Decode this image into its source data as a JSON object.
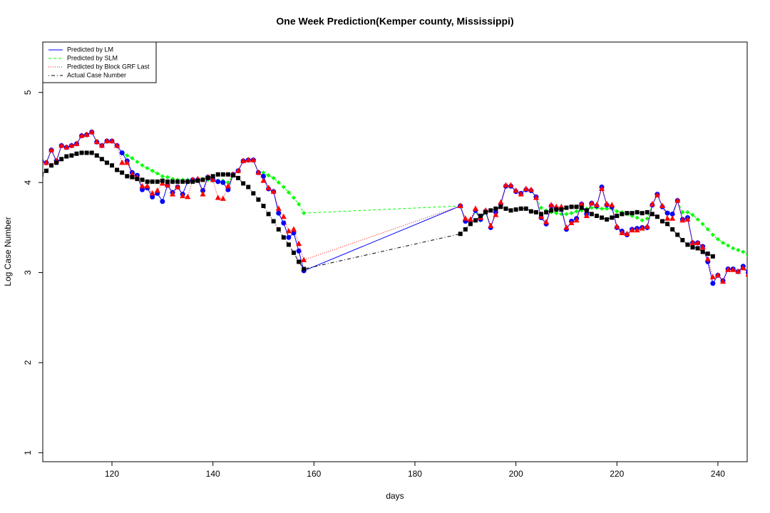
{
  "chart_data": {
    "type": "line",
    "title": "One Week Prediction(Kemper county, Mississippi)",
    "x_label": "days",
    "y_label": "Log Case Number",
    "xlim": [
      106.3,
      245.8
    ],
    "ylim": [
      0.9,
      5.56
    ],
    "xticks": [
      120,
      140,
      160,
      180,
      200,
      220,
      240
    ],
    "yticks": [
      1,
      2,
      3,
      4,
      5
    ],
    "legend": "top-left",
    "x": [
      106,
      107,
      108,
      109,
      110,
      111,
      112,
      113,
      114,
      115,
      116,
      117,
      118,
      119,
      120,
      121,
      122,
      123,
      124,
      125,
      126,
      127,
      128,
      129,
      130,
      131,
      132,
      133,
      134,
      135,
      136,
      137,
      138,
      139,
      140,
      141,
      142,
      143,
      144,
      145,
      146,
      147,
      148,
      149,
      150,
      151,
      152,
      153,
      154,
      155,
      156,
      157,
      158,
      189,
      190,
      191,
      192,
      193,
      194,
      195,
      196,
      197,
      198,
      199,
      200,
      201,
      202,
      203,
      204,
      205,
      206,
      207,
      208,
      209,
      210,
      211,
      212,
      213,
      214,
      215,
      216,
      217,
      218,
      219,
      220,
      221,
      222,
      223,
      224,
      225,
      226,
      227,
      228,
      229,
      230,
      231,
      232,
      233,
      234,
      235,
      236,
      237,
      238,
      239,
      240,
      241,
      242,
      243,
      244,
      245,
      246
    ],
    "series": [
      {
        "name": "Predicted by LM",
        "color": "#0000ff",
        "line_style": "solid",
        "marker": "circle",
        "values": [
          4.24,
          4.22,
          4.36,
          4.24,
          4.41,
          4.39,
          4.41,
          4.43,
          4.52,
          4.53,
          4.56,
          4.45,
          4.41,
          4.46,
          4.46,
          4.41,
          4.33,
          4.24,
          4.11,
          4.08,
          3.92,
          3.94,
          3.84,
          3.88,
          3.79,
          3.97,
          3.89,
          3.95,
          3.87,
          4.01,
          4.03,
          4.03,
          3.91,
          4.06,
          4.03,
          4.01,
          4.0,
          3.92,
          4.09,
          4.13,
          4.24,
          4.25,
          4.25,
          4.11,
          4.07,
          3.93,
          3.9,
          3.66,
          3.55,
          3.39,
          3.44,
          3.24,
          3.02,
          3.74,
          3.57,
          3.57,
          3.69,
          3.59,
          3.68,
          3.5,
          3.67,
          3.76,
          3.96,
          3.96,
          3.9,
          3.88,
          3.92,
          3.91,
          3.84,
          3.61,
          3.54,
          3.74,
          3.71,
          3.71,
          3.48,
          3.57,
          3.6,
          3.76,
          3.65,
          3.77,
          3.74,
          3.95,
          3.75,
          3.73,
          3.5,
          3.46,
          3.42,
          3.48,
          3.49,
          3.5,
          3.5,
          3.75,
          3.87,
          3.73,
          3.66,
          3.65,
          3.8,
          3.59,
          3.61,
          3.33,
          3.33,
          3.29,
          3.12,
          2.88,
          2.97,
          2.91,
          3.04,
          3.04,
          3.01,
          3.07,
          3.0
        ]
      },
      {
        "name": "Predicted by SLM",
        "color": "#00ff00",
        "line_style": "dashed",
        "marker": "diamond",
        "values": [
          4.24,
          4.22,
          4.36,
          4.24,
          4.41,
          4.39,
          4.41,
          4.43,
          4.52,
          4.53,
          4.56,
          4.45,
          4.41,
          4.46,
          4.46,
          4.41,
          4.33,
          4.3,
          4.27,
          4.23,
          4.19,
          4.16,
          4.13,
          4.1,
          4.07,
          4.06,
          4.04,
          4.03,
          4.03,
          4.03,
          4.03,
          4.04,
          4.04,
          4.03,
          4.02,
          4.02,
          4.02,
          4.0,
          4.09,
          4.13,
          4.24,
          4.25,
          4.25,
          4.12,
          4.11,
          4.08,
          4.05,
          4.0,
          3.95,
          3.89,
          3.83,
          3.76,
          3.66,
          3.74,
          3.58,
          3.58,
          3.68,
          3.58,
          3.67,
          3.51,
          3.66,
          3.76,
          3.96,
          3.96,
          3.9,
          3.88,
          3.92,
          3.91,
          3.84,
          3.72,
          3.69,
          3.67,
          3.66,
          3.65,
          3.65,
          3.66,
          3.68,
          3.69,
          3.71,
          3.72,
          3.72,
          3.71,
          3.71,
          3.71,
          3.68,
          3.67,
          3.65,
          3.63,
          3.61,
          3.58,
          3.6,
          3.75,
          3.87,
          3.73,
          3.66,
          3.65,
          3.8,
          3.67,
          3.67,
          3.64,
          3.59,
          3.54,
          3.48,
          3.42,
          3.37,
          3.33,
          3.3,
          3.27,
          3.25,
          3.23,
          3.19
        ]
      },
      {
        "name": "Predicted by Block GRF Last",
        "color": "#ff0000",
        "line_style": "dotted",
        "marker": "triangle",
        "values": [
          4.24,
          4.22,
          4.36,
          4.24,
          4.41,
          4.39,
          4.41,
          4.43,
          4.52,
          4.53,
          4.56,
          4.45,
          4.41,
          4.46,
          4.46,
          4.41,
          4.22,
          4.22,
          4.09,
          4.06,
          3.96,
          3.96,
          3.88,
          3.91,
          3.99,
          3.97,
          3.87,
          3.95,
          3.85,
          3.84,
          4.03,
          4.04,
          3.87,
          4.06,
          4.03,
          3.83,
          3.82,
          3.96,
          4.09,
          4.13,
          4.24,
          4.25,
          4.25,
          4.11,
          4.02,
          3.94,
          3.9,
          3.71,
          3.62,
          3.46,
          3.48,
          3.32,
          3.14,
          3.74,
          3.6,
          3.59,
          3.71,
          3.61,
          3.69,
          3.52,
          3.64,
          3.78,
          3.97,
          3.97,
          3.91,
          3.87,
          3.93,
          3.92,
          3.83,
          3.62,
          3.56,
          3.75,
          3.73,
          3.73,
          3.5,
          3.55,
          3.58,
          3.76,
          3.63,
          3.77,
          3.75,
          3.93,
          3.76,
          3.75,
          3.51,
          3.44,
          3.43,
          3.47,
          3.47,
          3.49,
          3.51,
          3.76,
          3.86,
          3.74,
          3.6,
          3.6,
          3.8,
          3.58,
          3.59,
          3.33,
          3.33,
          3.28,
          3.15,
          2.95,
          2.97,
          2.9,
          3.03,
          3.03,
          3.01,
          3.05,
          2.98
        ]
      },
      {
        "name": "Actual Case Number",
        "color": "#000000",
        "line_style": "dashdot",
        "marker": "square",
        "values": [
          4.09,
          4.13,
          4.19,
          4.22,
          4.26,
          4.29,
          4.3,
          4.32,
          4.33,
          4.33,
          4.33,
          4.3,
          4.26,
          4.22,
          4.19,
          4.14,
          4.11,
          4.07,
          4.06,
          4.04,
          4.03,
          4.01,
          4.01,
          4.01,
          4.02,
          4.01,
          4.01,
          4.01,
          4.01,
          4.01,
          4.01,
          4.02,
          4.03,
          4.05,
          4.07,
          4.09,
          4.09,
          4.09,
          4.08,
          4.05,
          3.99,
          3.95,
          3.88,
          3.81,
          3.74,
          3.65,
          3.57,
          3.48,
          3.39,
          3.31,
          3.22,
          3.12,
          3.04,
          3.43,
          3.48,
          3.54,
          3.58,
          3.63,
          3.67,
          3.69,
          3.71,
          3.73,
          3.71,
          3.69,
          3.7,
          3.71,
          3.71,
          3.68,
          3.67,
          3.65,
          3.67,
          3.69,
          3.7,
          3.7,
          3.72,
          3.73,
          3.73,
          3.72,
          3.69,
          3.65,
          3.63,
          3.61,
          3.59,
          3.61,
          3.63,
          3.65,
          3.66,
          3.66,
          3.67,
          3.66,
          3.67,
          3.65,
          3.62,
          3.57,
          3.54,
          3.48,
          3.42,
          3.36,
          3.31,
          3.28,
          3.27,
          3.23,
          3.21,
          3.18,
          null,
          null,
          null,
          null,
          null,
          null,
          null
        ]
      }
    ]
  }
}
